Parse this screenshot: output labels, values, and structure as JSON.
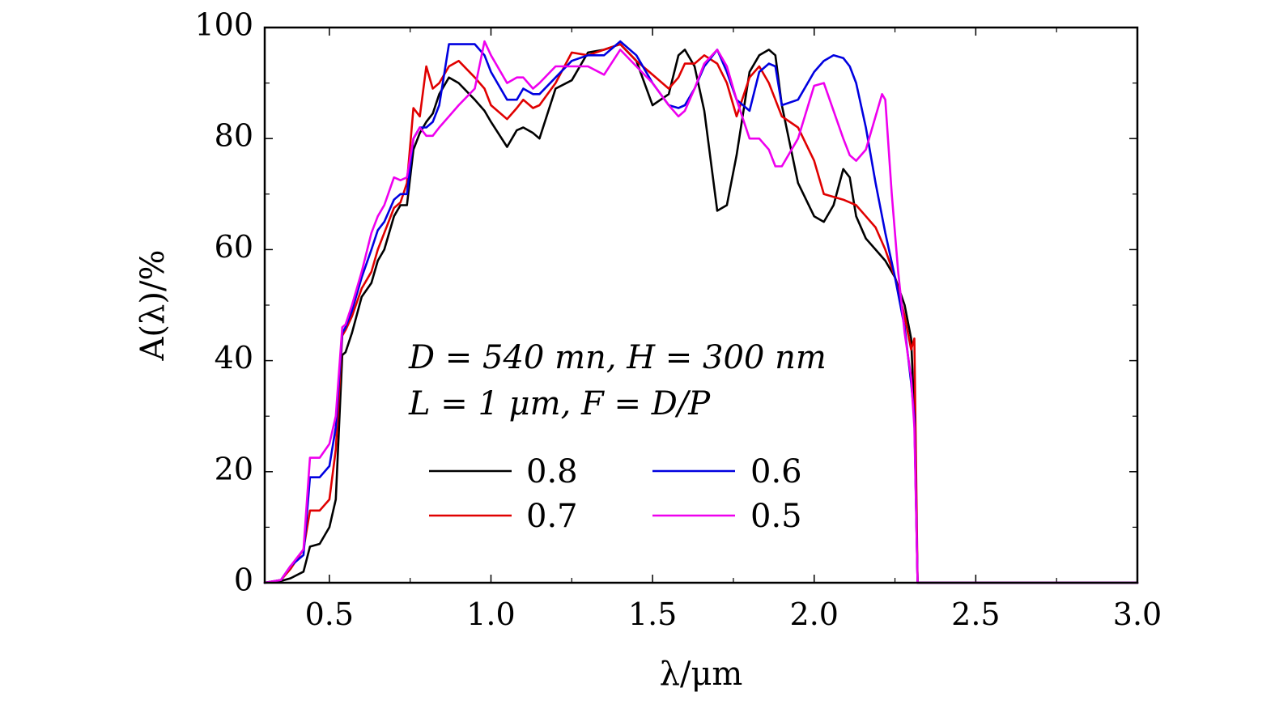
{
  "chart_data": {
    "type": "line",
    "title": "",
    "xlabel": "λ/μm",
    "ylabel": "A(λ)/%",
    "xlim": [
      0.3,
      3.0
    ],
    "ylim": [
      0,
      100
    ],
    "xticks": [
      0.5,
      1.0,
      1.5,
      2.0,
      2.5,
      3.0
    ],
    "xtick_labels": [
      "0.5",
      "1.0",
      "1.5",
      "2.0",
      "2.5",
      "3.0"
    ],
    "yticks": [
      0,
      20,
      40,
      60,
      80,
      100
    ],
    "ytick_labels": [
      "0",
      "20",
      "40",
      "60",
      "80",
      "100"
    ],
    "annotations": [
      "D = 540 mn, H = 300 nm",
      "L = 1 μm, F = D/P"
    ],
    "legend_position": "lower-center",
    "series": [
      {
        "name": "0.8",
        "color": "#000000",
        "x": [
          0.3,
          0.35,
          0.38,
          0.42,
          0.44,
          0.47,
          0.5,
          0.52,
          0.54,
          0.55,
          0.57,
          0.6,
          0.63,
          0.65,
          0.67,
          0.7,
          0.72,
          0.74,
          0.76,
          0.78,
          0.8,
          0.82,
          0.84,
          0.87,
          0.9,
          0.95,
          0.98,
          1.0,
          1.05,
          1.08,
          1.1,
          1.13,
          1.15,
          1.2,
          1.25,
          1.3,
          1.35,
          1.4,
          1.45,
          1.5,
          1.55,
          1.58,
          1.6,
          1.63,
          1.66,
          1.7,
          1.73,
          1.76,
          1.8,
          1.83,
          1.86,
          1.88,
          1.9,
          1.95,
          2.0,
          2.03,
          2.06,
          2.09,
          2.11,
          2.13,
          2.16,
          2.19,
          2.22,
          2.25,
          2.28,
          2.3,
          2.31,
          2.32,
          2.35,
          2.5,
          3.0
        ],
        "y": [
          0,
          0.3,
          0.8,
          2,
          6.5,
          7,
          10,
          15,
          41,
          41.5,
          45,
          51.5,
          54,
          58,
          60,
          66,
          68,
          68,
          78,
          81,
          83,
          84.5,
          88,
          91,
          90,
          87,
          85,
          83,
          78.5,
          81.5,
          82,
          81,
          80,
          89,
          90.5,
          95.5,
          96,
          97,
          94,
          86,
          88,
          95,
          96,
          93,
          85,
          67,
          68,
          77,
          92,
          95,
          96,
          95,
          86,
          72,
          66,
          65,
          68,
          74.5,
          73,
          66,
          62,
          60,
          58,
          55,
          50,
          44,
          30,
          0,
          0,
          0,
          0
        ]
      },
      {
        "name": "0.7",
        "color": "#e00000",
        "x": [
          0.3,
          0.35,
          0.38,
          0.42,
          0.44,
          0.47,
          0.5,
          0.52,
          0.54,
          0.55,
          0.57,
          0.6,
          0.63,
          0.65,
          0.67,
          0.7,
          0.72,
          0.74,
          0.76,
          0.78,
          0.8,
          0.82,
          0.84,
          0.87,
          0.9,
          0.95,
          0.98,
          1.0,
          1.05,
          1.08,
          1.1,
          1.13,
          1.15,
          1.2,
          1.25,
          1.3,
          1.35,
          1.4,
          1.45,
          1.5,
          1.55,
          1.58,
          1.6,
          1.63,
          1.66,
          1.7,
          1.73,
          1.76,
          1.8,
          1.83,
          1.86,
          1.88,
          1.9,
          1.95,
          2.0,
          2.03,
          2.06,
          2.09,
          2.11,
          2.13,
          2.16,
          2.19,
          2.22,
          2.25,
          2.28,
          2.3,
          2.31,
          2.32,
          2.35,
          2.5,
          3.0
        ],
        "y": [
          0,
          0.5,
          2.5,
          6,
          13,
          13,
          15,
          24,
          44.5,
          45.5,
          48,
          53,
          56,
          60,
          63,
          67.5,
          68.5,
          72,
          85.5,
          84,
          93,
          89,
          90,
          93,
          94,
          91,
          89,
          86,
          83.5,
          85.5,
          87,
          85.5,
          86,
          90,
          95.5,
          95,
          96,
          97,
          94,
          91.5,
          89,
          91,
          93.5,
          93.5,
          95,
          93.5,
          90,
          84,
          91,
          93,
          90,
          87,
          84,
          82,
          76,
          70,
          69.5,
          69,
          68.5,
          68,
          66,
          64,
          60,
          55,
          48,
          42,
          44,
          0,
          0,
          0,
          0
        ]
      },
      {
        "name": "0.6",
        "color": "#0000e0",
        "x": [
          0.3,
          0.35,
          0.38,
          0.42,
          0.44,
          0.47,
          0.5,
          0.52,
          0.54,
          0.55,
          0.57,
          0.6,
          0.63,
          0.65,
          0.67,
          0.7,
          0.72,
          0.74,
          0.76,
          0.78,
          0.8,
          0.82,
          0.84,
          0.87,
          0.9,
          0.95,
          0.98,
          1.0,
          1.05,
          1.08,
          1.1,
          1.13,
          1.15,
          1.2,
          1.25,
          1.3,
          1.35,
          1.4,
          1.45,
          1.5,
          1.55,
          1.58,
          1.6,
          1.63,
          1.66,
          1.7,
          1.73,
          1.76,
          1.8,
          1.83,
          1.86,
          1.88,
          1.9,
          1.95,
          2.0,
          2.03,
          2.06,
          2.09,
          2.11,
          2.13,
          2.16,
          2.19,
          2.22,
          2.25,
          2.28,
          2.3,
          2.31,
          2.32,
          2.35,
          2.5,
          3.0
        ],
        "y": [
          0,
          0.5,
          3,
          5,
          19,
          19,
          21,
          28,
          45,
          46,
          49,
          55,
          60,
          63.5,
          65,
          69,
          70,
          70,
          80,
          82,
          82,
          83,
          86,
          97,
          97,
          97,
          95,
          92,
          87,
          87,
          89,
          88,
          88,
          91,
          94,
          95,
          95,
          97.5,
          95,
          90,
          86,
          85.5,
          86,
          89,
          93,
          96,
          92,
          87,
          85,
          92,
          93.5,
          93,
          86,
          87,
          92,
          94,
          95,
          94.5,
          93,
          90,
          82,
          72,
          63,
          55,
          46,
          36,
          30,
          0,
          0,
          0,
          0
        ]
      },
      {
        "name": "0.5",
        "color": "#ee00ee",
        "x": [
          0.3,
          0.35,
          0.38,
          0.42,
          0.44,
          0.47,
          0.5,
          0.52,
          0.54,
          0.55,
          0.57,
          0.6,
          0.63,
          0.65,
          0.67,
          0.7,
          0.72,
          0.74,
          0.76,
          0.78,
          0.8,
          0.82,
          0.84,
          0.87,
          0.9,
          0.95,
          0.98,
          1.0,
          1.05,
          1.08,
          1.1,
          1.13,
          1.15,
          1.2,
          1.25,
          1.3,
          1.35,
          1.4,
          1.45,
          1.5,
          1.55,
          1.58,
          1.6,
          1.63,
          1.66,
          1.7,
          1.73,
          1.76,
          1.8,
          1.83,
          1.86,
          1.88,
          1.9,
          1.95,
          2.0,
          2.03,
          2.06,
          2.09,
          2.11,
          2.13,
          2.16,
          2.19,
          2.21,
          2.22,
          2.24,
          2.26,
          2.28,
          2.3,
          2.31,
          2.32,
          2.35,
          2.5,
          3.0
        ],
        "y": [
          0,
          0.5,
          3,
          6,
          22.5,
          22.5,
          25,
          30,
          46,
          46.5,
          50,
          56,
          63,
          66,
          68,
          73,
          72.5,
          73,
          80,
          82,
          80.5,
          80.5,
          82,
          84,
          86,
          89,
          97.5,
          95,
          90,
          91,
          91,
          89,
          90,
          93,
          93,
          93,
          91.5,
          96,
          93,
          90,
          86,
          84,
          85,
          89,
          93.5,
          96,
          93,
          87,
          80,
          80,
          78,
          75,
          75,
          80,
          89.5,
          90,
          85,
          80,
          77,
          76,
          78,
          84,
          88,
          87,
          70,
          56,
          45,
          37,
          28,
          0,
          0,
          0,
          0
        ]
      }
    ]
  }
}
